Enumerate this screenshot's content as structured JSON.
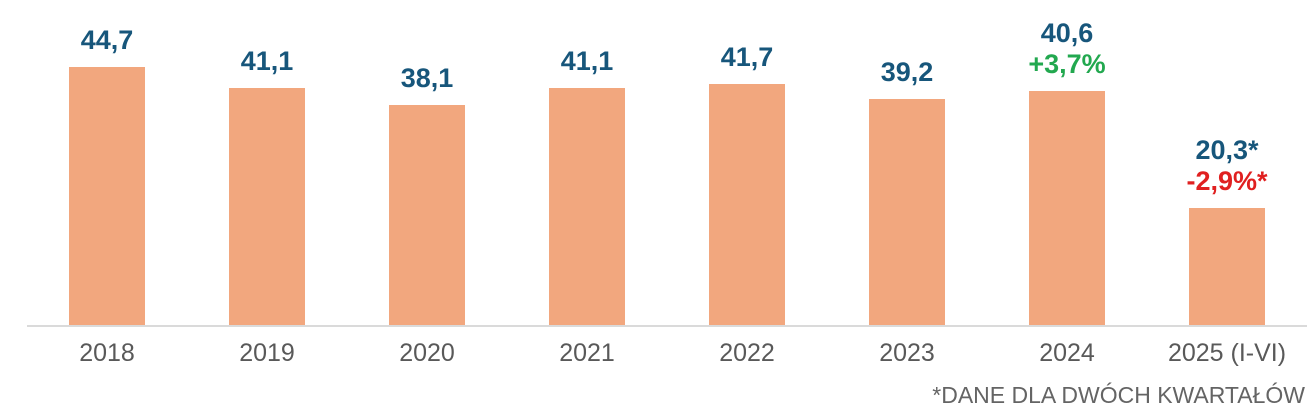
{
  "chart_data": {
    "type": "bar",
    "title": "",
    "xlabel": "",
    "ylabel": "",
    "ylim": [
      0,
      45
    ],
    "grid": false,
    "legend": false,
    "categories": [
      "2018",
      "2019",
      "2020",
      "2021",
      "2022",
      "2023",
      "2024",
      "2025 (I-VI)"
    ],
    "values": [
      44.7,
      41.1,
      38.1,
      41.1,
      41.7,
      39.2,
      40.6,
      20.3
    ],
    "points": [
      {
        "category": "2018",
        "value": 44.7,
        "label": "44,7"
      },
      {
        "category": "2019",
        "value": 41.1,
        "label": "41,1"
      },
      {
        "category": "2020",
        "value": 38.1,
        "label": "38,1"
      },
      {
        "category": "2021",
        "value": 41.1,
        "label": "41,1"
      },
      {
        "category": "2022",
        "value": 41.7,
        "label": "41,7"
      },
      {
        "category": "2023",
        "value": 39.2,
        "label": "39,2"
      },
      {
        "category": "2024",
        "value": 40.6,
        "label": "40,6",
        "change": "+3,7%",
        "change_color": "#22a84f"
      },
      {
        "category": "2025 (I-VI)",
        "value": 20.3,
        "label": "20,3*",
        "change": "-2,9%*",
        "change_color": "#e02020"
      }
    ],
    "colors": {
      "bar_fill": "#f2a77e",
      "value_label": "#17567b",
      "positive_change": "#22a84f",
      "negative_change": "#e02020",
      "axis_tick_label": "#595959",
      "axis_line": "#dadada",
      "footnote": "#646464"
    },
    "footnote": "*DANE DLA DWÓCH KWARTAŁÓW"
  }
}
